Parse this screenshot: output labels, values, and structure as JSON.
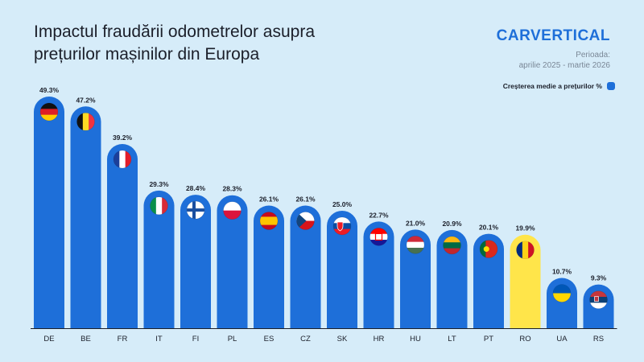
{
  "header": {
    "title_line1": "Impactul fraudării odometrelor asupra",
    "title_line2": "prețurilor mașinilor din Europa",
    "brand": "CARVERTICAL",
    "period_label": "Perioada:",
    "period_value": "aprilie 2025 - martie 2026"
  },
  "legend": {
    "label": "Creșterea medie a prețurilor %",
    "color": "#1e6fd9"
  },
  "colors": {
    "bar": "#1e6fd9",
    "highlight": "#ffe54a",
    "background": "#d6ecf9"
  },
  "chart_data": {
    "type": "bar",
    "categories": [
      "DE",
      "BE",
      "FR",
      "IT",
      "FI",
      "PL",
      "ES",
      "CZ",
      "SK",
      "HR",
      "HU",
      "LT",
      "PT",
      "RO",
      "UA",
      "RS"
    ],
    "values": [
      49.3,
      47.2,
      39.2,
      29.3,
      28.4,
      28.3,
      26.1,
      26.1,
      25.0,
      22.7,
      21.0,
      20.9,
      20.1,
      19.9,
      10.7,
      9.3
    ],
    "value_labels": [
      "49.3%",
      "47.2%",
      "39.2%",
      "29.3%",
      "28.4%",
      "28.3%",
      "26.1%",
      "26.1%",
      "25.0%",
      "22.7%",
      "21.0%",
      "20.9%",
      "20.1%",
      "19.9%",
      "10.7%",
      "9.3%"
    ],
    "highlight_category": "RO",
    "flags": [
      "germany-flag",
      "belgium-flag",
      "france-flag",
      "italy-flag",
      "finland-flag",
      "poland-flag",
      "spain-flag",
      "czechia-flag",
      "slovakia-flag",
      "croatia-flag",
      "hungary-flag",
      "lithuania-flag",
      "portugal-flag",
      "romania-flag",
      "ukraine-flag",
      "serbia-flag"
    ],
    "ylim": [
      0,
      50
    ],
    "grid": false
  }
}
